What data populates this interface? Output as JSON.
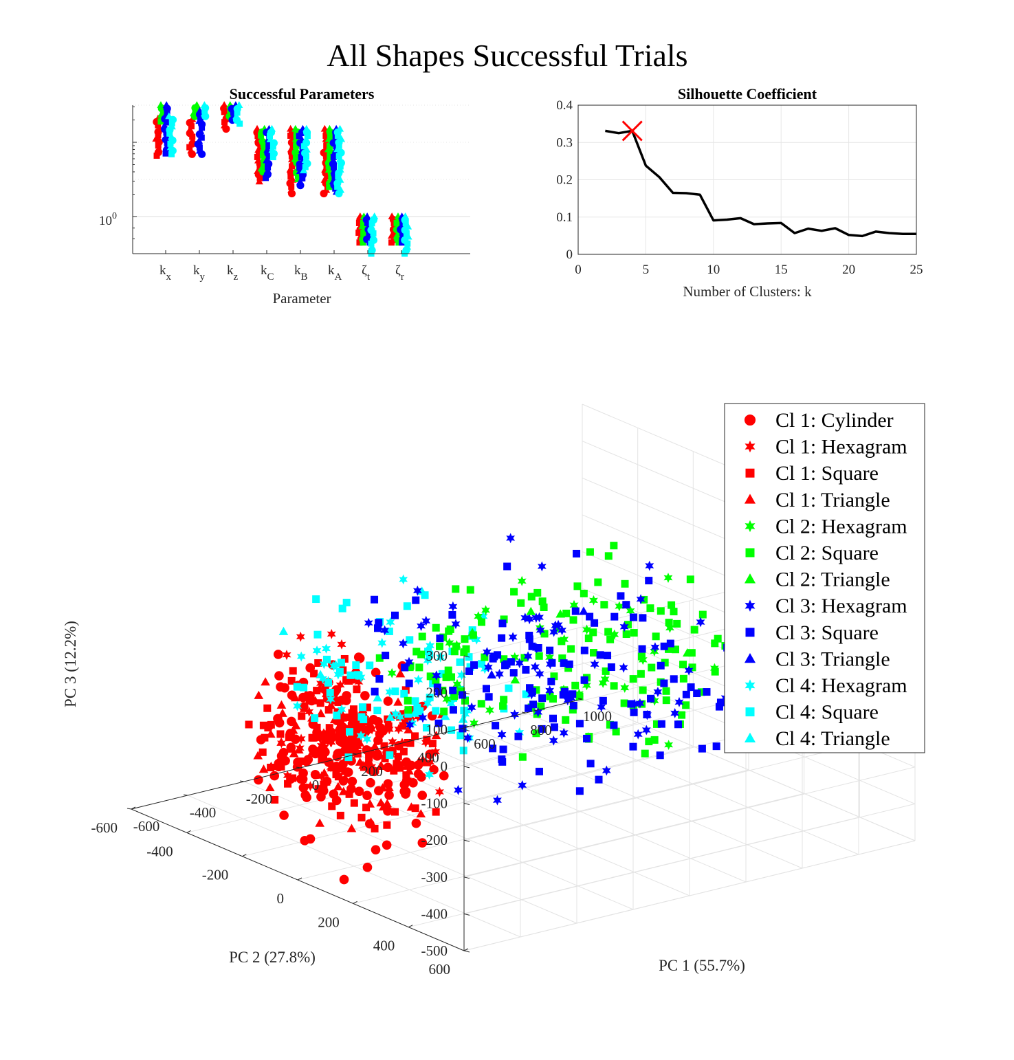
{
  "figure": {
    "title": "All Shapes Successful Trials"
  },
  "chart_data": [
    {
      "id": "params",
      "type": "scatter",
      "title": "Successful Parameters",
      "xlabel": "Parameter",
      "ylabel": "",
      "yscale": "log",
      "ytick_base": "10",
      "ytick_exp": "0",
      "categories": [
        {
          "main": "k",
          "sub": "x"
        },
        {
          "main": "k",
          "sub": "y"
        },
        {
          "main": "k",
          "sub": "z"
        },
        {
          "main": "k",
          "sub": "C"
        },
        {
          "main": "k",
          "sub": "B"
        },
        {
          "main": "k",
          "sub": "A"
        },
        {
          "main": "ζ",
          "sub": "t"
        },
        {
          "main": "ζ",
          "sub": "r"
        }
      ],
      "ylim_decades": [
        -0.5,
        1.5
      ],
      "series": [
        {
          "name": "Cl 1",
          "color": "#ff0000",
          "ranges": [
            [
              0.82,
              1.32
            ],
            [
              0.84,
              1.31
            ],
            [
              1.18,
              1.5
            ],
            [
              0.47,
              1.18
            ],
            [
              0.31,
              1.18
            ],
            [
              0.31,
              1.18
            ],
            [
              -0.35,
              0.0
            ],
            [
              -0.35,
              0.0
            ]
          ]
        },
        {
          "name": "Cl 2",
          "color": "#00ff00",
          "ranges": [
            [
              1.28,
              1.5
            ],
            [
              1.35,
              1.5
            ],
            [
              1.35,
              1.5
            ],
            [
              0.6,
              1.18
            ],
            [
              0.5,
              1.18
            ],
            [
              0.4,
              1.18
            ],
            [
              -0.35,
              0.0
            ],
            [
              -0.35,
              0.0
            ]
          ]
        },
        {
          "name": "Cl 3",
          "color": "#0000ff",
          "ranges": [
            [
              0.85,
              1.5
            ],
            [
              0.84,
              1.42
            ],
            [
              1.3,
              1.5
            ],
            [
              0.52,
              1.18
            ],
            [
              0.42,
              1.18
            ],
            [
              0.33,
              1.18
            ],
            [
              -0.35,
              0.0
            ],
            [
              -0.35,
              0.0
            ]
          ]
        },
        {
          "name": "Cl 4",
          "color": "#00ffff",
          "ranges": [
            [
              0.84,
              1.35
            ],
            [
              1.35,
              1.5
            ],
            [
              1.25,
              1.5
            ],
            [
              0.8,
              1.18
            ],
            [
              0.62,
              1.18
            ],
            [
              0.31,
              1.18
            ],
            [
              -0.5,
              0.0
            ],
            [
              -0.5,
              0.0
            ]
          ]
        }
      ]
    },
    {
      "id": "silhouette",
      "type": "line",
      "title": "Silhouette Coefficient",
      "xlabel": "Number of Clusters: k",
      "ylabel": "",
      "xlim": [
        0,
        25
      ],
      "ylim": [
        0,
        0.4
      ],
      "xticks": [
        "0",
        "5",
        "10",
        "15",
        "20",
        "25"
      ],
      "yticks": [
        "0",
        "0.1",
        "0.2",
        "0.3",
        "0.4"
      ],
      "x": [
        2,
        3,
        4,
        5,
        6,
        7,
        8,
        9,
        10,
        11,
        12,
        13,
        14,
        15,
        16,
        17,
        18,
        19,
        20,
        21,
        22,
        23,
        24,
        25
      ],
      "y": [
        0.331,
        0.325,
        0.331,
        0.238,
        0.207,
        0.165,
        0.164,
        0.16,
        0.091,
        0.093,
        0.097,
        0.081,
        0.083,
        0.084,
        0.057,
        0.069,
        0.063,
        0.07,
        0.052,
        0.049,
        0.061,
        0.057,
        0.055,
        0.055
      ],
      "optimum": {
        "k": 4,
        "value": 0.331,
        "marker": "x",
        "color": "#ff0000"
      }
    },
    {
      "id": "pca3d",
      "type": "scatter",
      "title": "",
      "xlabel": "PC 1 (55.7%)",
      "ylabel": "PC 2 (27.8%)",
      "zlabel": "PC 3 (12.2%)",
      "xlim": [
        -600,
        1000
      ],
      "ylim": [
        -600,
        600
      ],
      "zlim": [
        -500,
        300
      ],
      "xticks": [
        "-600",
        "-400",
        "-200",
        "0",
        "200",
        "400",
        "600",
        "800",
        "1000"
      ],
      "yticks": [
        "600",
        "400",
        "200",
        "0",
        "-200",
        "-400",
        "-600"
      ],
      "zticks": [
        "300",
        "200",
        "100",
        "0",
        "-100",
        "-200",
        "-300",
        "-400",
        "-500"
      ],
      "series": [
        {
          "name": "Cl 1: Cylinder",
          "color": "#ff0000",
          "marker": "circle"
        },
        {
          "name": "Cl 1: Hexagram",
          "color": "#ff0000",
          "marker": "hexagram"
        },
        {
          "name": "Cl 1: Square",
          "color": "#ff0000",
          "marker": "square"
        },
        {
          "name": "Cl 1: Triangle",
          "color": "#ff0000",
          "marker": "triangle"
        },
        {
          "name": "Cl 2: Hexagram",
          "color": "#00ff00",
          "marker": "hexagram"
        },
        {
          "name": "Cl 2: Square",
          "color": "#00ff00",
          "marker": "square"
        },
        {
          "name": "Cl 2: Triangle",
          "color": "#00ff00",
          "marker": "triangle"
        },
        {
          "name": "Cl 3: Hexagram",
          "color": "#0000ff",
          "marker": "hexagram"
        },
        {
          "name": "Cl 3: Square",
          "color": "#0000ff",
          "marker": "square"
        },
        {
          "name": "Cl 3: Triangle",
          "color": "#0000ff",
          "marker": "triangle"
        },
        {
          "name": "Cl 4: Hexagram",
          "color": "#00ffff",
          "marker": "hexagram"
        },
        {
          "name": "Cl 4: Square",
          "color": "#00ffff",
          "marker": "square"
        },
        {
          "name": "Cl 4: Triangle",
          "color": "#00ffff",
          "marker": "triangle"
        }
      ],
      "clusters": [
        {
          "cluster": "Cl 1",
          "color": "#ff0000",
          "pc1": [
            -600,
            -250
          ],
          "pc2": [
            -200,
            200
          ],
          "pc3": [
            -480,
            130
          ],
          "markers": {
            "circle": 150,
            "triangle": 90,
            "square": 110,
            "hexagram": 40
          }
        },
        {
          "cluster": "Cl 4",
          "color": "#00ffff",
          "pc1": [
            -520,
            -80
          ],
          "pc2": [
            -200,
            350
          ],
          "pc3": [
            -300,
            300
          ],
          "markers": {
            "square": 60,
            "hexagram": 40,
            "triangle": 8
          }
        },
        {
          "cluster": "Cl 2",
          "color": "#00ff00",
          "pc1": [
            -100,
            800
          ],
          "pc2": [
            -300,
            400
          ],
          "pc3": [
            -350,
            250
          ],
          "markers": {
            "square": 140,
            "hexagram": 40,
            "triangle": 6
          }
        },
        {
          "cluster": "Cl 3",
          "color": "#0000ff",
          "pc1": [
            0,
            900
          ],
          "pc2": [
            -500,
            250
          ],
          "pc3": [
            -480,
            120
          ],
          "markers": {
            "square": 110,
            "hexagram": 70,
            "triangle": 2
          }
        }
      ]
    }
  ]
}
